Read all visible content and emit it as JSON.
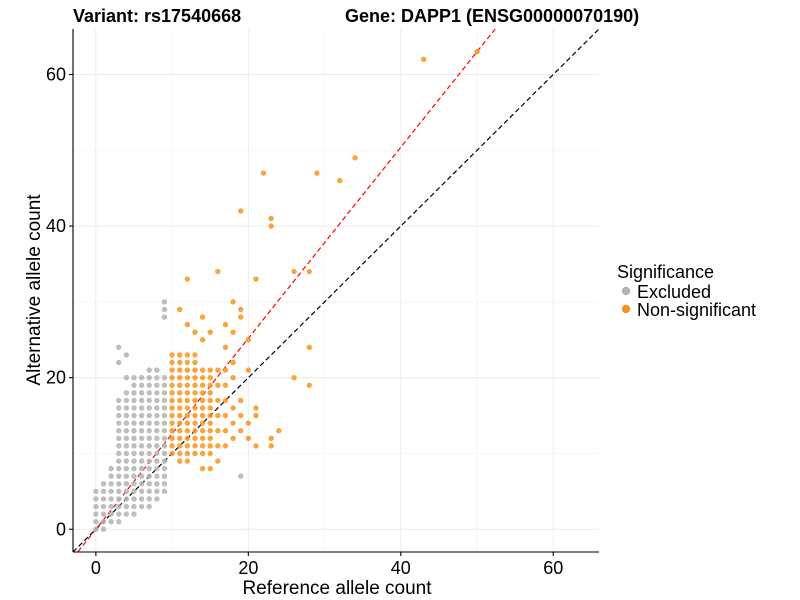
{
  "chart_data": {
    "type": "scatter",
    "title_left": "Variant: rs17540668",
    "title_right": "Gene: DAPP1 (ENSG00000070190)",
    "xlabel": "Reference allele count",
    "ylabel": "Alternative allele count",
    "xlim": [
      -3,
      66
    ],
    "ylim": [
      -3,
      66
    ],
    "x_ticks": [
      0,
      20,
      40,
      60
    ],
    "y_ticks": [
      0,
      20,
      40,
      60
    ],
    "grid": true,
    "legend": {
      "title": "Significance",
      "position": "right",
      "entries": [
        "Excluded",
        "Non-significant"
      ]
    },
    "reference_lines": [
      {
        "slope": 1.0,
        "intercept": 0,
        "color": "#000000",
        "style": "dashed"
      },
      {
        "slope": 1.26,
        "intercept": 0,
        "color": "#ff0000",
        "style": "dashed"
      }
    ],
    "series": [
      {
        "name": "Excluded",
        "color": "#b3b3b3",
        "points": [
          [
            0,
            0
          ],
          [
            0,
            1
          ],
          [
            0,
            2
          ],
          [
            0,
            3
          ],
          [
            0,
            4
          ],
          [
            0,
            5
          ],
          [
            1,
            0
          ],
          [
            1,
            1
          ],
          [
            1,
            2
          ],
          [
            1,
            3
          ],
          [
            1,
            4
          ],
          [
            1,
            5
          ],
          [
            1,
            6
          ],
          [
            2,
            1
          ],
          [
            2,
            2
          ],
          [
            2,
            3
          ],
          [
            2,
            4
          ],
          [
            2,
            5
          ],
          [
            2,
            6
          ],
          [
            2,
            7
          ],
          [
            2,
            8
          ],
          [
            3,
            1
          ],
          [
            3,
            2
          ],
          [
            3,
            3
          ],
          [
            3,
            4
          ],
          [
            3,
            5
          ],
          [
            3,
            6
          ],
          [
            3,
            7
          ],
          [
            3,
            8
          ],
          [
            3,
            9
          ],
          [
            3,
            10
          ],
          [
            3,
            11
          ],
          [
            3,
            12
          ],
          [
            3,
            13
          ],
          [
            3,
            14
          ],
          [
            3,
            15
          ],
          [
            3,
            16
          ],
          [
            3,
            17
          ],
          [
            3,
            22
          ],
          [
            3,
            24
          ],
          [
            4,
            2
          ],
          [
            4,
            3
          ],
          [
            4,
            4
          ],
          [
            4,
            5
          ],
          [
            4,
            6
          ],
          [
            4,
            7
          ],
          [
            4,
            8
          ],
          [
            4,
            9
          ],
          [
            4,
            10
          ],
          [
            4,
            11
          ],
          [
            4,
            12
          ],
          [
            4,
            13
          ],
          [
            4,
            14
          ],
          [
            4,
            15
          ],
          [
            4,
            16
          ],
          [
            4,
            17
          ],
          [
            4,
            18
          ],
          [
            4,
            20
          ],
          [
            4,
            23
          ],
          [
            5,
            2
          ],
          [
            5,
            3
          ],
          [
            5,
            4
          ],
          [
            5,
            5
          ],
          [
            5,
            6
          ],
          [
            5,
            7
          ],
          [
            5,
            8
          ],
          [
            5,
            9
          ],
          [
            5,
            10
          ],
          [
            5,
            11
          ],
          [
            5,
            12
          ],
          [
            5,
            13
          ],
          [
            5,
            14
          ],
          [
            5,
            15
          ],
          [
            5,
            16
          ],
          [
            5,
            17
          ],
          [
            5,
            18
          ],
          [
            5,
            19
          ],
          [
            5,
            20
          ],
          [
            6,
            3
          ],
          [
            6,
            4
          ],
          [
            6,
            5
          ],
          [
            6,
            6
          ],
          [
            6,
            7
          ],
          [
            6,
            8
          ],
          [
            6,
            9
          ],
          [
            6,
            10
          ],
          [
            6,
            11
          ],
          [
            6,
            12
          ],
          [
            6,
            13
          ],
          [
            6,
            14
          ],
          [
            6,
            15
          ],
          [
            6,
            16
          ],
          [
            6,
            17
          ],
          [
            6,
            18
          ],
          [
            6,
            19
          ],
          [
            6,
            20
          ],
          [
            7,
            3
          ],
          [
            7,
            4
          ],
          [
            7,
            5
          ],
          [
            7,
            6
          ],
          [
            7,
            7
          ],
          [
            7,
            8
          ],
          [
            7,
            9
          ],
          [
            7,
            10
          ],
          [
            7,
            11
          ],
          [
            7,
            12
          ],
          [
            7,
            13
          ],
          [
            7,
            14
          ],
          [
            7,
            15
          ],
          [
            7,
            16
          ],
          [
            7,
            17
          ],
          [
            7,
            18
          ],
          [
            7,
            19
          ],
          [
            7,
            20
          ],
          [
            7,
            21
          ],
          [
            8,
            4
          ],
          [
            8,
            5
          ],
          [
            8,
            6
          ],
          [
            8,
            7
          ],
          [
            8,
            8
          ],
          [
            8,
            9
          ],
          [
            8,
            10
          ],
          [
            8,
            11
          ],
          [
            8,
            12
          ],
          [
            8,
            13
          ],
          [
            8,
            14
          ],
          [
            8,
            15
          ],
          [
            8,
            16
          ],
          [
            8,
            17
          ],
          [
            8,
            18
          ],
          [
            8,
            19
          ],
          [
            8,
            20
          ],
          [
            8,
            21
          ],
          [
            9,
            5
          ],
          [
            9,
            6
          ],
          [
            9,
            7
          ],
          [
            9,
            8
          ],
          [
            9,
            9
          ],
          [
            9,
            10
          ],
          [
            9,
            11
          ],
          [
            9,
            12
          ],
          [
            9,
            13
          ],
          [
            9,
            14
          ],
          [
            9,
            15
          ],
          [
            9,
            16
          ],
          [
            9,
            17
          ],
          [
            9,
            18
          ],
          [
            9,
            19
          ],
          [
            9,
            20
          ],
          [
            9,
            28
          ],
          [
            9,
            29
          ],
          [
            9,
            30
          ],
          [
            19,
            7
          ]
        ]
      },
      {
        "name": "Non-significant",
        "color": "#f7941d",
        "points": [
          [
            10,
            10
          ],
          [
            10,
            11
          ],
          [
            10,
            12
          ],
          [
            10,
            13
          ],
          [
            10,
            14
          ],
          [
            10,
            15
          ],
          [
            10,
            16
          ],
          [
            10,
            17
          ],
          [
            10,
            18
          ],
          [
            10,
            19
          ],
          [
            10,
            20
          ],
          [
            10,
            21
          ],
          [
            10,
            22
          ],
          [
            10,
            23
          ],
          [
            11,
            9
          ],
          [
            11,
            10
          ],
          [
            11,
            11
          ],
          [
            11,
            12
          ],
          [
            11,
            13
          ],
          [
            11,
            14
          ],
          [
            11,
            15
          ],
          [
            11,
            16
          ],
          [
            11,
            17
          ],
          [
            11,
            18
          ],
          [
            11,
            19
          ],
          [
            11,
            20
          ],
          [
            11,
            21
          ],
          [
            11,
            22
          ],
          [
            11,
            23
          ],
          [
            11,
            29
          ],
          [
            12,
            9
          ],
          [
            12,
            10
          ],
          [
            12,
            11
          ],
          [
            12,
            12
          ],
          [
            12,
            13
          ],
          [
            12,
            14
          ],
          [
            12,
            15
          ],
          [
            12,
            16
          ],
          [
            12,
            17
          ],
          [
            12,
            18
          ],
          [
            12,
            19
          ],
          [
            12,
            20
          ],
          [
            12,
            21
          ],
          [
            12,
            22
          ],
          [
            12,
            23
          ],
          [
            12,
            27
          ],
          [
            12,
            33
          ],
          [
            13,
            10
          ],
          [
            13,
            11
          ],
          [
            13,
            12
          ],
          [
            13,
            13
          ],
          [
            13,
            14
          ],
          [
            13,
            15
          ],
          [
            13,
            16
          ],
          [
            13,
            17
          ],
          [
            13,
            18
          ],
          [
            13,
            19
          ],
          [
            13,
            20
          ],
          [
            13,
            21
          ],
          [
            13,
            22
          ],
          [
            13,
            23
          ],
          [
            13,
            26
          ],
          [
            14,
            8
          ],
          [
            14,
            10
          ],
          [
            14,
            11
          ],
          [
            14,
            12
          ],
          [
            14,
            13
          ],
          [
            14,
            14
          ],
          [
            14,
            15
          ],
          [
            14,
            16
          ],
          [
            14,
            17
          ],
          [
            14,
            18
          ],
          [
            14,
            19
          ],
          [
            14,
            20
          ],
          [
            14,
            21
          ],
          [
            14,
            25
          ],
          [
            14,
            28
          ],
          [
            15,
            8
          ],
          [
            15,
            10
          ],
          [
            15,
            11
          ],
          [
            15,
            12
          ],
          [
            15,
            13
          ],
          [
            15,
            14
          ],
          [
            15,
            15
          ],
          [
            15,
            16
          ],
          [
            15,
            17
          ],
          [
            15,
            18
          ],
          [
            15,
            19
          ],
          [
            15,
            20
          ],
          [
            15,
            21
          ],
          [
            15,
            26
          ],
          [
            16,
            9
          ],
          [
            16,
            11
          ],
          [
            16,
            13
          ],
          [
            16,
            15
          ],
          [
            16,
            17
          ],
          [
            16,
            19
          ],
          [
            16,
            21
          ],
          [
            16,
            34
          ],
          [
            17,
            11
          ],
          [
            17,
            13
          ],
          [
            17,
            15
          ],
          [
            17,
            17
          ],
          [
            17,
            19
          ],
          [
            17,
            21
          ],
          [
            17,
            24
          ],
          [
            17,
            27
          ],
          [
            18,
            12
          ],
          [
            18,
            14
          ],
          [
            18,
            16
          ],
          [
            18,
            20
          ],
          [
            18,
            22
          ],
          [
            18,
            26
          ],
          [
            18,
            30
          ],
          [
            19,
            13
          ],
          [
            19,
            15
          ],
          [
            19,
            17
          ],
          [
            19,
            28
          ],
          [
            19,
            29
          ],
          [
            19,
            42
          ],
          [
            20,
            12
          ],
          [
            20,
            14
          ],
          [
            20,
            21
          ],
          [
            20,
            25
          ],
          [
            21,
            11
          ],
          [
            21,
            15
          ],
          [
            21,
            16
          ],
          [
            21,
            33
          ],
          [
            22,
            47
          ],
          [
            23,
            11
          ],
          [
            23,
            12
          ],
          [
            23,
            40
          ],
          [
            23,
            41
          ],
          [
            24,
            13
          ],
          [
            26,
            20
          ],
          [
            26,
            34
          ],
          [
            28,
            19
          ],
          [
            28,
            24
          ],
          [
            28,
            34
          ],
          [
            29,
            47
          ],
          [
            32,
            46
          ],
          [
            34,
            49
          ],
          [
            43,
            62
          ],
          [
            50,
            63
          ]
        ]
      }
    ]
  }
}
